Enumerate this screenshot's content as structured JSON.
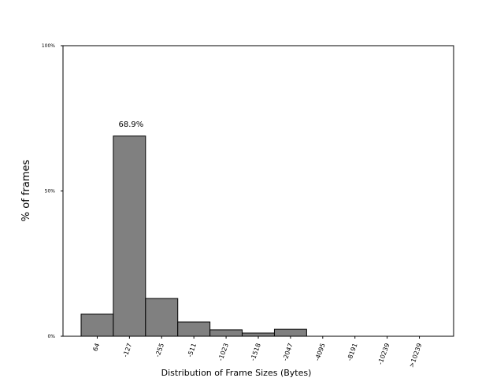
{
  "chart_data": {
    "type": "bar",
    "x_label": "Distribution of Frame Sizes (Bytes)",
    "y_label": "% of frames",
    "categories": [
      "64",
      "-127",
      "-255",
      "-511",
      "-1023",
      "-1518",
      "-2047",
      "-4095",
      "-8191",
      "-10239",
      ">10239"
    ],
    "values": [
      7.6,
      68.9,
      13.0,
      4.9,
      2.2,
      1.1,
      2.4,
      0,
      0,
      0,
      0
    ],
    "value_labels": [
      null,
      "68.9%",
      null,
      null,
      null,
      null,
      null,
      null,
      null,
      null,
      null
    ],
    "color": "#808080",
    "ylim": [
      0,
      100
    ],
    "yticks": [
      {
        "value": 0,
        "label": "0%"
      },
      {
        "value": 50,
        "label": "50%"
      },
      {
        "value": 100,
        "label": "100%"
      }
    ]
  }
}
